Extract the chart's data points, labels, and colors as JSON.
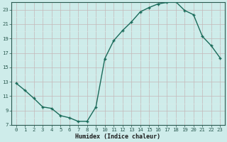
{
  "x": [
    0,
    1,
    2,
    3,
    4,
    5,
    6,
    7,
    8,
    9,
    10,
    11,
    12,
    13,
    14,
    15,
    16,
    17,
    18,
    19,
    20,
    21,
    22,
    23
  ],
  "y": [
    12.8,
    11.8,
    10.7,
    9.5,
    9.3,
    8.3,
    8.0,
    7.5,
    7.5,
    9.5,
    16.2,
    18.7,
    20.1,
    21.3,
    22.7,
    23.3,
    23.8,
    24.0,
    24.1,
    22.9,
    22.3,
    19.3,
    18.0,
    16.3
  ],
  "bg_color": "#ceecea",
  "grid_color_major": "#c4b8b8",
  "grid_color_minor": "#d8eceb",
  "line_color": "#1a6b5a",
  "marker_color": "#1a6b5a",
  "xlabel": "Humidex (Indice chaleur)",
  "xlim": [
    -0.5,
    23.5
  ],
  "ylim": [
    7,
    24
  ],
  "yticks": [
    7,
    9,
    11,
    13,
    15,
    17,
    19,
    21,
    23
  ],
  "xticks": [
    0,
    1,
    2,
    3,
    4,
    5,
    6,
    7,
    8,
    9,
    10,
    11,
    12,
    13,
    14,
    15,
    16,
    17,
    18,
    19,
    20,
    21,
    22,
    23
  ],
  "font_color": "#1a1a1a",
  "axis_color": "#2a5a50",
  "xlabel_fontsize": 6.0,
  "tick_fontsize": 5.2
}
